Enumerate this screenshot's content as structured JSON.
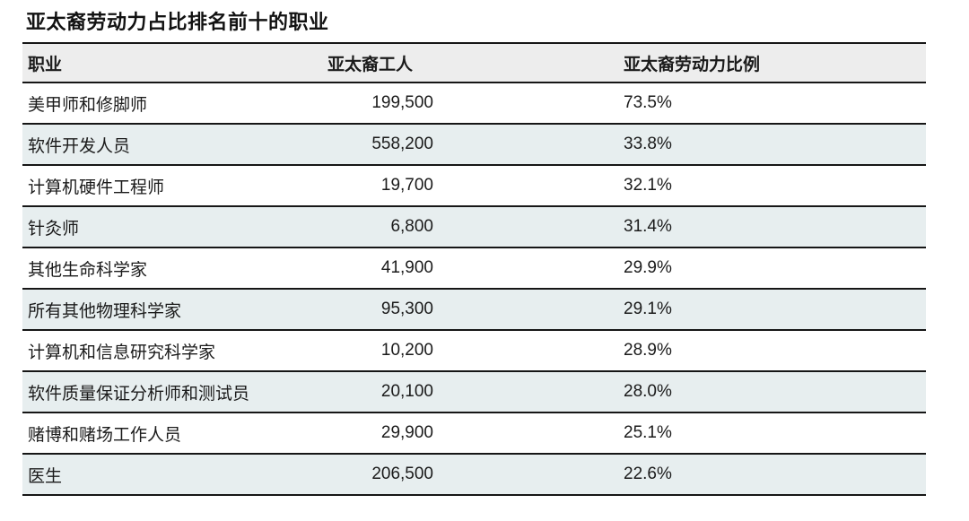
{
  "title": "亚太裔劳动力占比排名前十的职业",
  "table": {
    "columns": [
      {
        "key": "occupation",
        "label": "职业"
      },
      {
        "key": "workers",
        "label": "亚太裔工人"
      },
      {
        "key": "share",
        "label": "亚太裔劳动力比例"
      }
    ],
    "rows": [
      {
        "occupation": "美甲师和修脚师",
        "workers": "199,500",
        "share": "73.5%"
      },
      {
        "occupation": "软件开发人员",
        "workers": "558,200",
        "share": "33.8%"
      },
      {
        "occupation": "计算机硬件工程师",
        "workers": "19,700",
        "share": "32.1%"
      },
      {
        "occupation": "针灸师",
        "workers": "6,800",
        "share": "31.4%"
      },
      {
        "occupation": "其他生命科学家",
        "workers": "41,900",
        "share": "29.9%"
      },
      {
        "occupation": "所有其他物理科学家",
        "workers": "95,300",
        "share": "29.1%"
      },
      {
        "occupation": "计算机和信息研究科学家",
        "workers": "10,200",
        "share": "28.9%"
      },
      {
        "occupation": "软件质量保证分析师和测试员",
        "workers": "20,100",
        "share": "28.0%"
      },
      {
        "occupation": "赌博和赌场工作人员",
        "workers": "29,900",
        "share": "25.1%"
      },
      {
        "occupation": "医生",
        "workers": "206,500",
        "share": "22.6%"
      }
    ]
  },
  "colors": {
    "header_background": "#ededed",
    "alternate_row_background": "#e7eeef",
    "row_divider": "#161616",
    "text": "#1b1b1b"
  },
  "chart_data": {
    "type": "table",
    "title": "亚太裔劳动力占比排名前十的职业",
    "columns": [
      "职业",
      "亚太裔工人",
      "亚太裔劳动力比例"
    ],
    "rows": [
      [
        "美甲师和修脚师",
        199500,
        73.5
      ],
      [
        "软件开发人员",
        558200,
        33.8
      ],
      [
        "计算机硬件工程师",
        19700,
        32.1
      ],
      [
        "针灸师",
        6800,
        31.4
      ],
      [
        "其他生命科学家",
        41900,
        29.9
      ],
      [
        "所有其他物理科学家",
        95300,
        29.1
      ],
      [
        "计算机和信息研究科学家",
        10200,
        28.9
      ],
      [
        "软件质量保证分析师和测试员",
        20100,
        28.0
      ],
      [
        "赌博和赌场工作人员",
        29900,
        25.1
      ],
      [
        "医生",
        206500,
        22.6
      ]
    ],
    "notes": {
      "workers_unit": "人数",
      "share_unit": "百分比"
    }
  }
}
